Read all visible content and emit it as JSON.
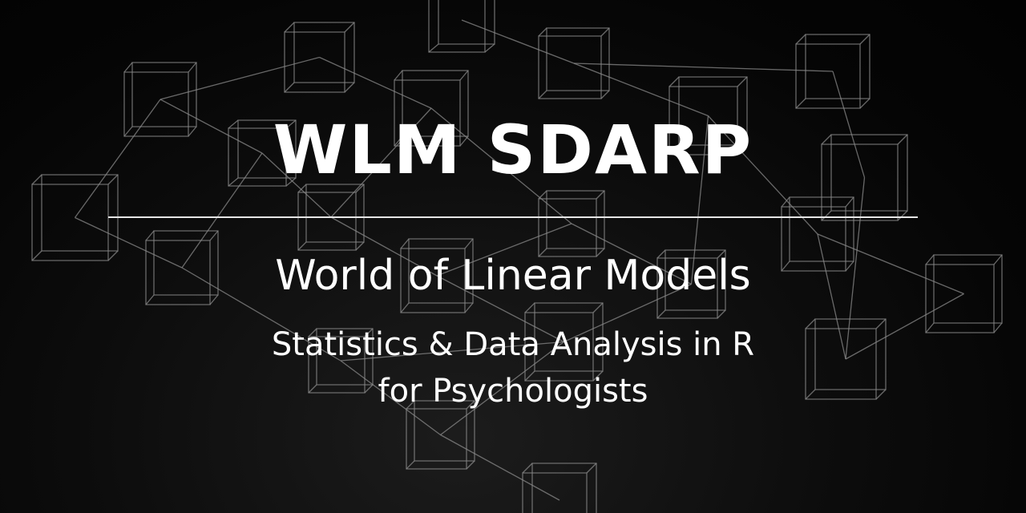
{
  "banner": {
    "title": "WLM SDARP",
    "subtitle": "World of Linear Models",
    "tagline_line1": "Statistics & Data Analysis in R",
    "tagline_line2": "for Psychologists"
  },
  "colors": {
    "background": "#050505",
    "text": "#ffffff",
    "cube_wireframe": "#8a8a8a",
    "divider": "#e6e6e6"
  }
}
